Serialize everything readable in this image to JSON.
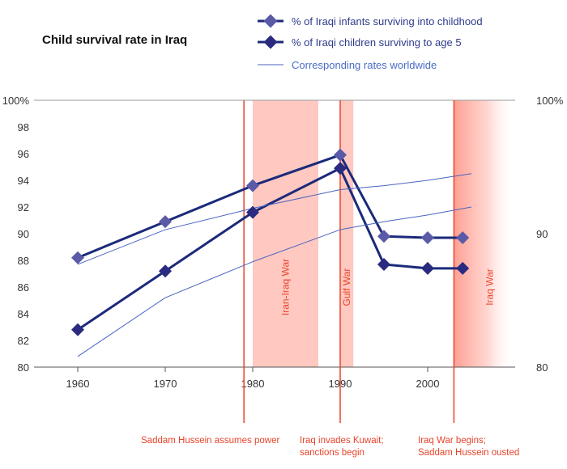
{
  "chart_data": {
    "type": "line",
    "title": "Child survival rate in Iraq",
    "x_ticks": [
      1960,
      1970,
      1980,
      1990,
      2000
    ],
    "y_ticks_left": [
      "80",
      "82",
      "84",
      "86",
      "88",
      "90",
      "92",
      "94",
      "96",
      "98",
      "100%"
    ],
    "y_ticks_right": [
      "80",
      "90",
      "100%"
    ],
    "xlim": [
      1955,
      2010
    ],
    "ylim": [
      80,
      100
    ],
    "series": [
      {
        "name": "% of Iraqi infants surviving into childhood",
        "style": "marker-line",
        "color": "#1b2a7a",
        "x": [
          1960,
          1970,
          1980,
          1990,
          1995,
          2000,
          2004
        ],
        "y": [
          88.2,
          90.9,
          93.6,
          95.9,
          89.8,
          89.7,
          89.7
        ]
      },
      {
        "name": "% of Iraqi children surviving to age 5",
        "style": "marker-line",
        "color": "#1b2a7a",
        "x": [
          1960,
          1970,
          1980,
          1990,
          1995,
          2000,
          2004
        ],
        "y": [
          82.8,
          87.2,
          91.6,
          94.9,
          87.7,
          87.4,
          87.4
        ]
      },
      {
        "name": "Corresponding rates worldwide",
        "style": "thin-line",
        "color": "#4a64c0",
        "x": [
          1960,
          1970,
          1980,
          1990,
          1995,
          2000,
          2005
        ],
        "y": [
          87.7,
          90.3,
          91.9,
          93.3,
          93.6,
          94.0,
          94.5
        ]
      },
      {
        "name": "",
        "style": "thin-line",
        "color": "#4a64c0",
        "x": [
          1960,
          1970,
          1980,
          1990,
          1995,
          2000,
          2005
        ],
        "y": [
          80.8,
          85.2,
          87.9,
          90.3,
          90.9,
          91.4,
          92.0
        ]
      }
    ],
    "periods": [
      {
        "label": "Iran-Iraq War",
        "start": 1980,
        "end": 1987.5
      },
      {
        "label": "Gulf War",
        "start": 1990,
        "end": 1991.5
      },
      {
        "label": "Iraq War",
        "start": 2003,
        "end": 2010,
        "fade": true
      }
    ],
    "events": [
      {
        "year": 1979,
        "label_lines": [
          "Saddam Hussein assumes power"
        ]
      },
      {
        "year": 1990,
        "label_lines": [
          "Iraq invades Kuwait;",
          "sanctions begin"
        ]
      },
      {
        "year": 2003,
        "label_lines": [
          "Iraq War begins;",
          "Saddam Hussein ousted"
        ]
      }
    ],
    "legend_position": "top-right",
    "colors": {
      "iraq": "#1b2a7a",
      "marker": "#5a5aa8",
      "world": "#4a64c0",
      "events": "#e8442b",
      "shade": "#ffc8c0"
    }
  }
}
